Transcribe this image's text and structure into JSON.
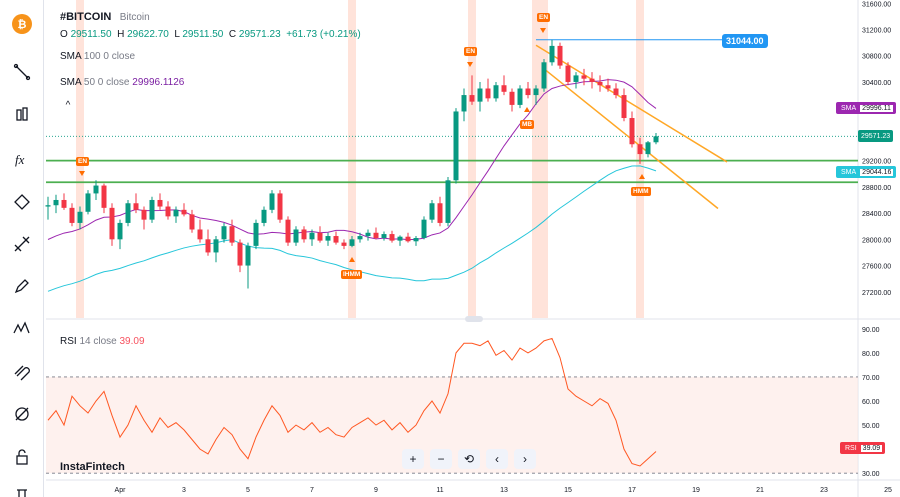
{
  "header": {
    "symbol": "#BITCOIN",
    "name": "Bitcoin",
    "ohlc": {
      "o_label": "O",
      "o": "29511.50",
      "h_label": "H",
      "h": "29622.70",
      "l_label": "L",
      "l": "29511.50",
      "c_label": "C",
      "c": "29571.23",
      "change": "+61.73 (+0.21%)"
    },
    "sma100": {
      "label": "SMA",
      "params": "100 0 close"
    },
    "sma50": {
      "label": "SMA",
      "params": "50 0 close",
      "value": "29996.1126"
    },
    "collapse_glyph": "^"
  },
  "rsi_legend": {
    "label": "RSI",
    "params": "14 close",
    "value": "39.09"
  },
  "watermark": "InstaFintech",
  "navigation": {
    "zoom_in": "+",
    "zoom_out": "−",
    "reset": "⟲",
    "scroll_left": "‹",
    "scroll_right": "›"
  },
  "tags": {
    "sma_top_label": "SMA",
    "sma_top_value": "29996.11",
    "last_price": "29571.23",
    "sma_bottom_label": "SMA",
    "sma_bottom_value": "29044.16",
    "rsi_label": "RSI",
    "rsi_value": "39.09",
    "callout_price": "31044.00"
  },
  "events": {
    "en_1": "EN",
    "en_2": "EN",
    "en_3": "EN",
    "mb": "MB",
    "ihmm": "IHMM",
    "hmm": "HMM"
  },
  "toolbar_icons": [
    "bitcoin-logo",
    "cursor-icon",
    "trend-line-icon",
    "fib-icon",
    "brush-icon",
    "pattern-icon",
    "ruler-icon",
    "magnet-icon",
    "measure-icon",
    "lock-icon",
    "trash-icon",
    "eye-icon"
  ],
  "colors": {
    "up": "#089981",
    "down": "#f23645",
    "sma50": "#9c27b0",
    "sma100": "#26c6da",
    "support": "#4caf50",
    "channel": "#ffa726",
    "rsi": "#ff5722",
    "event_band": "#ffccbc",
    "callout": "#2196f3"
  },
  "chart_data": [
    {
      "type": "candlestick",
      "title": "#BITCOIN",
      "x_ticks": [
        "Apr",
        "3",
        "5",
        "7",
        "9",
        "11",
        "13",
        "15",
        "17",
        "19",
        "21",
        "23",
        "25"
      ],
      "y_ticks": [
        31600,
        31200,
        30800,
        30400,
        30000,
        29600,
        29200,
        28800,
        28400,
        28000,
        27600,
        27200
      ],
      "ylim": [
        26800,
        31650
      ],
      "support_lines": [
        29200,
        28870
      ],
      "channel_upper": [
        [
          30960,
          30520
        ],
        [
          29750,
          29180
        ]
      ],
      "channel_lower": [
        [
          30600,
          29300
        ],
        [
          28870,
          28470
        ]
      ],
      "callout_price": 31044,
      "last_price": 29571.23,
      "sma50_last": 29996.11,
      "sma100_last": 29044.16,
      "candles": [
        [
          28500,
          28650,
          28300,
          28520
        ],
        [
          28520,
          28680,
          28400,
          28600
        ],
        [
          28600,
          28700,
          28450,
          28480
        ],
        [
          28480,
          28550,
          28200,
          28250
        ],
        [
          28250,
          28500,
          28150,
          28420
        ],
        [
          28420,
          28750,
          28380,
          28700
        ],
        [
          28700,
          28900,
          28600,
          28820
        ],
        [
          28820,
          28850,
          28400,
          28480
        ],
        [
          28480,
          28550,
          27900,
          28000
        ],
        [
          28000,
          28300,
          27850,
          28250
        ],
        [
          28250,
          28600,
          28200,
          28550
        ],
        [
          28550,
          28700,
          28400,
          28450
        ],
        [
          28450,
          28500,
          28150,
          28300
        ],
        [
          28300,
          28650,
          28250,
          28600
        ],
        [
          28600,
          28700,
          28450,
          28500
        ],
        [
          28500,
          28580,
          28300,
          28350
        ],
        [
          28350,
          28500,
          28250,
          28450
        ],
        [
          28450,
          28550,
          28350,
          28380
        ],
        [
          28380,
          28450,
          28100,
          28150
        ],
        [
          28150,
          28300,
          27950,
          28000
        ],
        [
          28000,
          28150,
          27750,
          27800
        ],
        [
          27800,
          28050,
          27650,
          28000
        ],
        [
          28000,
          28250,
          27950,
          28200
        ],
        [
          28200,
          28300,
          27900,
          27950
        ],
        [
          27950,
          28000,
          27500,
          27600
        ],
        [
          27600,
          27950,
          27250,
          27900
        ],
        [
          27900,
          28300,
          27850,
          28250
        ],
        [
          28250,
          28500,
          28200,
          28450
        ],
        [
          28450,
          28750,
          28400,
          28700
        ],
        [
          28700,
          28750,
          28250,
          28300
        ],
        [
          28300,
          28350,
          27900,
          27950
        ],
        [
          27950,
          28200,
          27900,
          28150
        ],
        [
          28150,
          28200,
          27950,
          28000
        ],
        [
          28000,
          28150,
          27900,
          28100
        ],
        [
          28100,
          28200,
          27950,
          27980
        ],
        [
          27980,
          28100,
          27900,
          28050
        ],
        [
          28050,
          28120,
          27920,
          27950
        ],
        [
          27950,
          28000,
          27850,
          27900
        ],
        [
          27900,
          28050,
          27880,
          28000
        ],
        [
          28000,
          28100,
          27950,
          28050
        ],
        [
          28050,
          28150,
          27980,
          28100
        ],
        [
          28100,
          28180,
          28000,
          28020
        ],
        [
          28020,
          28120,
          27980,
          28080
        ],
        [
          28080,
          28130,
          27950,
          27980
        ],
        [
          27980,
          28060,
          27900,
          28040
        ],
        [
          28040,
          28100,
          27950,
          27970
        ],
        [
          27970,
          28050,
          27900,
          28020
        ],
        [
          28020,
          28350,
          28000,
          28300
        ],
        [
          28300,
          28600,
          28250,
          28550
        ],
        [
          28550,
          28650,
          28200,
          28250
        ],
        [
          28250,
          28950,
          28200,
          28900
        ],
        [
          28900,
          30000,
          28850,
          29950
        ],
        [
          29950,
          30300,
          29800,
          30200
        ],
        [
          30200,
          30500,
          30050,
          30100
        ],
        [
          30100,
          30400,
          29950,
          30300
        ],
        [
          30300,
          30450,
          30100,
          30150
        ],
        [
          30150,
          30400,
          30100,
          30350
        ],
        [
          30350,
          30500,
          30200,
          30250
        ],
        [
          30250,
          30300,
          29950,
          30050
        ],
        [
          30050,
          30350,
          30000,
          30300
        ],
        [
          30300,
          30400,
          30150,
          30200
        ],
        [
          30200,
          30350,
          30050,
          30300
        ],
        [
          30300,
          30750,
          30250,
          30700
        ],
        [
          30700,
          31044,
          30650,
          30950
        ],
        [
          30950,
          31000,
          30600,
          30650
        ],
        [
          30650,
          30700,
          30350,
          30400
        ],
        [
          30400,
          30550,
          30300,
          30500
        ],
        [
          30500,
          30600,
          30350,
          30450
        ],
        [
          30450,
          30550,
          30300,
          30400
        ],
        [
          30400,
          30500,
          30250,
          30350
        ],
        [
          30350,
          30450,
          30250,
          30300
        ],
        [
          30300,
          30380,
          30150,
          30200
        ],
        [
          30200,
          30300,
          29800,
          29850
        ],
        [
          29850,
          29950,
          29400,
          29450
        ],
        [
          29450,
          29550,
          29150,
          29300
        ],
        [
          29300,
          29500,
          29250,
          29480
        ],
        [
          29480,
          29622,
          29450,
          29571
        ]
      ]
    },
    {
      "type": "line",
      "title": "RSI 14 close",
      "y_ticks": [
        90,
        80,
        70,
        60,
        50,
        40,
        30
      ],
      "ylim": [
        28,
        92
      ],
      "overbought": 70,
      "oversold": 30,
      "values": [
        52,
        56,
        50,
        62,
        58,
        55,
        60,
        64,
        54,
        45,
        50,
        58,
        52,
        47,
        53,
        49,
        51,
        48,
        44,
        40,
        38,
        44,
        49,
        46,
        40,
        36,
        45,
        52,
        58,
        54,
        47,
        50,
        48,
        51,
        47,
        49,
        46,
        45,
        49,
        51,
        53,
        50,
        52,
        48,
        51,
        47,
        50,
        56,
        60,
        55,
        63,
        80,
        84,
        84,
        83,
        85,
        79,
        81,
        77,
        82,
        80,
        82,
        85,
        86,
        78,
        65,
        62,
        60,
        58,
        61,
        59,
        52,
        40,
        34,
        33,
        36,
        39
      ]
    }
  ]
}
